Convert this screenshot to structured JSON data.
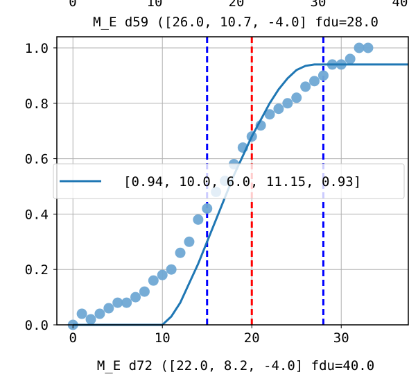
{
  "chart_data": {
    "type": "scatter",
    "top_title": "M_E d59 ([26.0, 10.7, -4.0] fdu=28.0",
    "top_tick_labels": [
      "0",
      "10",
      "20",
      "30",
      "40"
    ],
    "xlabel": "M_E d72 ([22.0, 8.2, -4.0] fdu=40.0",
    "ylabel": "",
    "xlim": [
      -1.8,
      37.5
    ],
    "ylim": [
      0,
      1.04
    ],
    "xticks": [
      0,
      10,
      20,
      30
    ],
    "xtick_labels": [
      "0",
      "10",
      "20",
      "30"
    ],
    "yticks": [
      0.0,
      0.2,
      0.4,
      0.6,
      0.8,
      1.0
    ],
    "ytick_labels": [
      "0.0",
      "0.2",
      "0.4",
      "0.6",
      "0.8",
      "1.0"
    ],
    "grid": true,
    "legend_position": "center",
    "legend_label": "[0.94, 10.0, 6.0, 11.15, 0.93]",
    "scatter_color": "#6fa8d4",
    "line_color": "#1f77b4",
    "scatter": {
      "x": [
        0,
        1,
        2,
        3,
        4,
        5,
        6,
        7,
        8,
        9,
        10,
        11,
        12,
        13,
        14,
        15,
        16,
        17,
        18,
        19,
        20,
        21,
        22,
        23,
        24,
        25,
        26,
        27,
        28,
        29,
        30,
        31,
        32,
        33
      ],
      "y": [
        0.0,
        0.04,
        0.02,
        0.04,
        0.06,
        0.08,
        0.08,
        0.1,
        0.12,
        0.16,
        0.18,
        0.2,
        0.26,
        0.3,
        0.38,
        0.42,
        0.48,
        0.52,
        0.58,
        0.64,
        0.68,
        0.72,
        0.76,
        0.78,
        0.8,
        0.82,
        0.86,
        0.88,
        0.9,
        0.94,
        0.94,
        0.96,
        1.0,
        1.0
      ]
    },
    "fit_line": {
      "x": [
        0,
        10,
        11,
        12,
        13,
        14,
        15,
        16,
        17,
        18,
        19,
        20,
        21,
        22,
        23,
        24,
        25,
        26,
        27,
        28,
        37.5
      ],
      "y": [
        0.0,
        0.0,
        0.03,
        0.08,
        0.15,
        0.22,
        0.3,
        0.38,
        0.46,
        0.54,
        0.61,
        0.68,
        0.74,
        0.8,
        0.85,
        0.89,
        0.92,
        0.935,
        0.94,
        0.94,
        0.94
      ]
    },
    "vlines": [
      {
        "x": 15,
        "color": "#0000ff"
      },
      {
        "x": 20,
        "color": "#ff0000"
      },
      {
        "x": 28,
        "color": "#0000ff"
      }
    ]
  }
}
